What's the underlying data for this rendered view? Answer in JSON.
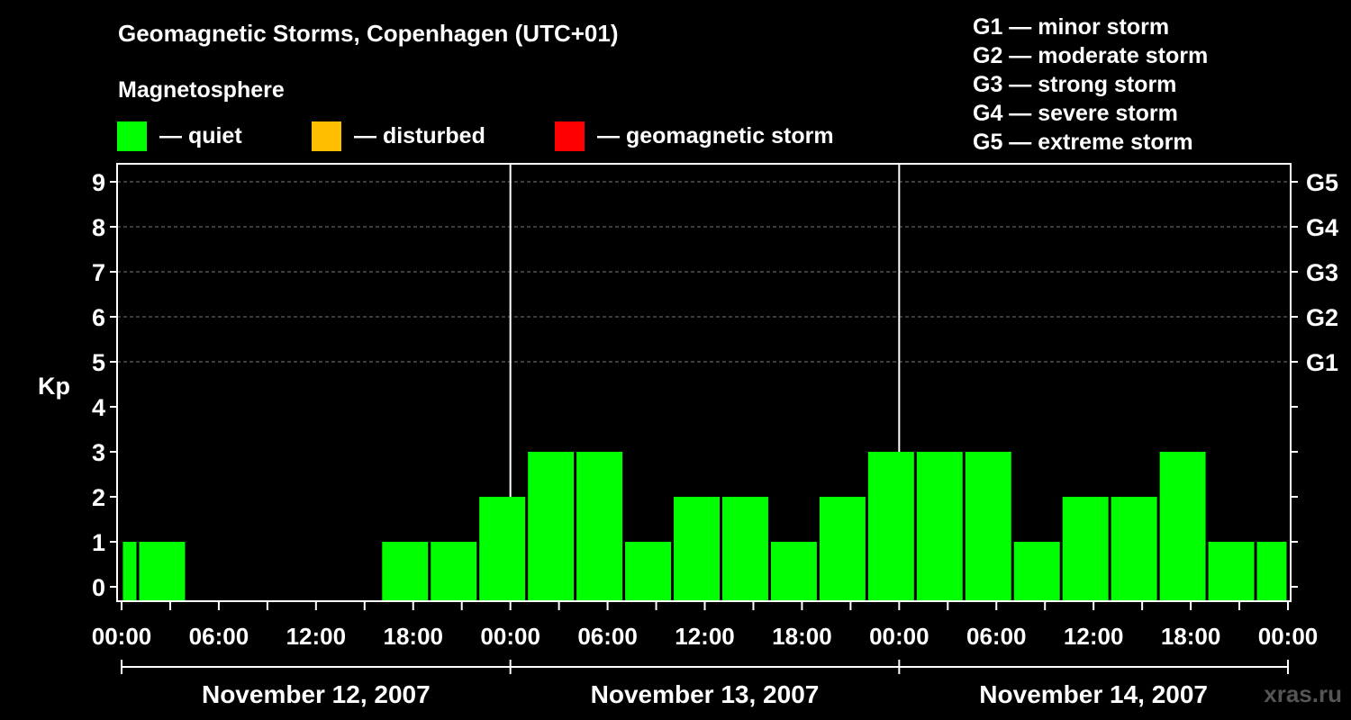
{
  "header": {
    "title": "Geomagnetic Storms, Copenhagen (UTC+01)",
    "magnetosphere_label": "Magnetosphere"
  },
  "legend": [
    {
      "label": "— quiet",
      "color": "#00ff00"
    },
    {
      "label": "— disturbed",
      "color": "#ffbf00"
    },
    {
      "label": "— geomagnetic storm",
      "color": "#ff0000"
    }
  ],
  "g_scale": [
    "G1 — minor storm",
    "G2 — moderate storm",
    "G3 — strong storm",
    "G4 — severe storm",
    "G5 — extreme storm"
  ],
  "watermark": "xras.ru",
  "chart_data": {
    "type": "bar",
    "ylabel": "Kp",
    "ylim": [
      0,
      9
    ],
    "y_ticks": [
      "0",
      "1",
      "2",
      "3",
      "4",
      "5",
      "6",
      "7",
      "8",
      "9"
    ],
    "right_axis": [
      {
        "label": "G1",
        "at": 5
      },
      {
        "label": "G2",
        "at": 6
      },
      {
        "label": "G3",
        "at": 7
      },
      {
        "label": "G4",
        "at": 8
      },
      {
        "label": "G5",
        "at": 9
      }
    ],
    "grid_y": [
      5,
      6,
      7,
      8,
      9
    ],
    "x_range": [
      "2007-11-12 00:00",
      "2007-11-15 00:00"
    ],
    "x_tick_labels": [
      "00:00",
      "06:00",
      "12:00",
      "18:00",
      "00:00",
      "06:00",
      "12:00",
      "18:00",
      "00:00",
      "06:00",
      "12:00",
      "18:00",
      "00:00"
    ],
    "days": [
      "November 12, 2007",
      "November 13, 2007",
      "November 14, 2007"
    ],
    "bar_color": "#00ff00",
    "bars": [
      {
        "start": "2007-11-12 00:00",
        "end": "2007-11-12 01:00",
        "kp": 1
      },
      {
        "start": "2007-11-12 01:00",
        "end": "2007-11-12 04:00",
        "kp": 1
      },
      {
        "start": "2007-11-12 04:00",
        "end": "2007-11-12 07:00",
        "kp": 0
      },
      {
        "start": "2007-11-12 07:00",
        "end": "2007-11-12 10:00",
        "kp": 0
      },
      {
        "start": "2007-11-12 10:00",
        "end": "2007-11-12 13:00",
        "kp": 0
      },
      {
        "start": "2007-11-12 13:00",
        "end": "2007-11-12 16:00",
        "kp": 0
      },
      {
        "start": "2007-11-12 16:00",
        "end": "2007-11-12 19:00",
        "kp": 1
      },
      {
        "start": "2007-11-12 19:00",
        "end": "2007-11-12 22:00",
        "kp": 1
      },
      {
        "start": "2007-11-12 22:00",
        "end": "2007-11-13 01:00",
        "kp": 2
      },
      {
        "start": "2007-11-13 01:00",
        "end": "2007-11-13 04:00",
        "kp": 3
      },
      {
        "start": "2007-11-13 04:00",
        "end": "2007-11-13 07:00",
        "kp": 3
      },
      {
        "start": "2007-11-13 07:00",
        "end": "2007-11-13 10:00",
        "kp": 1
      },
      {
        "start": "2007-11-13 10:00",
        "end": "2007-11-13 13:00",
        "kp": 2
      },
      {
        "start": "2007-11-13 13:00",
        "end": "2007-11-13 16:00",
        "kp": 2
      },
      {
        "start": "2007-11-13 16:00",
        "end": "2007-11-13 19:00",
        "kp": 1
      },
      {
        "start": "2007-11-13 19:00",
        "end": "2007-11-13 22:00",
        "kp": 2
      },
      {
        "start": "2007-11-13 22:00",
        "end": "2007-11-14 01:00",
        "kp": 3
      },
      {
        "start": "2007-11-14 01:00",
        "end": "2007-11-14 04:00",
        "kp": 3
      },
      {
        "start": "2007-11-14 04:00",
        "end": "2007-11-14 07:00",
        "kp": 3
      },
      {
        "start": "2007-11-14 07:00",
        "end": "2007-11-14 10:00",
        "kp": 1
      },
      {
        "start": "2007-11-14 10:00",
        "end": "2007-11-14 13:00",
        "kp": 2
      },
      {
        "start": "2007-11-14 13:00",
        "end": "2007-11-14 16:00",
        "kp": 2
      },
      {
        "start": "2007-11-14 16:00",
        "end": "2007-11-14 19:00",
        "kp": 3
      },
      {
        "start": "2007-11-14 19:00",
        "end": "2007-11-14 22:00",
        "kp": 1
      },
      {
        "start": "2007-11-14 22:00",
        "end": "2007-11-15 00:00",
        "kp": 1
      }
    ]
  }
}
